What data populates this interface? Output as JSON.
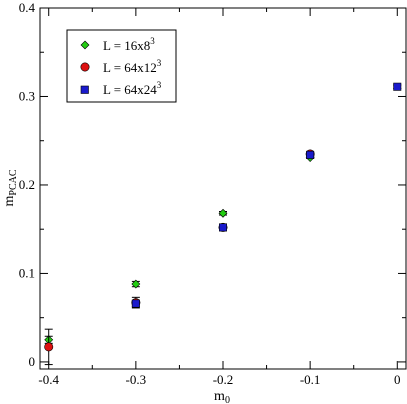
{
  "chart_data": {
    "type": "scatter",
    "xlabel": "m",
    "xlabel_sub": "0",
    "ylabel": "m",
    "ylabel_sub": "PCAC",
    "xlim": [
      -0.41,
      0.01
    ],
    "ylim": [
      -0.008,
      0.4
    ],
    "xticks": [
      -0.4,
      -0.3,
      -0.2,
      -0.1,
      0
    ],
    "xtick_labels": [
      "-0.4",
      "-0.3",
      "-0.2",
      "-0.1",
      "0"
    ],
    "yticks": [
      0,
      0.1,
      0.2,
      0.3,
      0.4
    ],
    "ytick_labels": [
      "0",
      "0.1",
      "0.2",
      "0.3",
      "0.4"
    ],
    "grid": false,
    "legend_position": "top-left",
    "series": [
      {
        "name": "L = 16x8",
        "name_sup": "3",
        "marker": "diamond",
        "color": "#22cc11",
        "points": [
          {
            "x": -0.4,
            "y": 0.025,
            "err": 0.004
          },
          {
            "x": -0.3,
            "y": 0.088,
            "err": 0.003
          },
          {
            "x": -0.2,
            "y": 0.168,
            "err": 0.002
          },
          {
            "x": -0.1,
            "y": 0.231,
            "err": 0.001
          }
        ]
      },
      {
        "name": "L = 64x12",
        "name_sup": "3",
        "marker": "circle",
        "color": "#dd1111",
        "points": [
          {
            "x": -0.4,
            "y": 0.017,
            "err": 0.02
          },
          {
            "x": -0.3,
            "y": 0.067,
            "err": 0.006
          },
          {
            "x": -0.2,
            "y": 0.152,
            "err": 0.002
          },
          {
            "x": -0.1,
            "y": 0.235,
            "err": 0.001
          }
        ]
      },
      {
        "name": "L = 64x24",
        "name_sup": "3",
        "marker": "square",
        "color": "#1a1acc",
        "points": [
          {
            "x": -0.3,
            "y": 0.066,
            "err": 0.003
          },
          {
            "x": -0.2,
            "y": 0.152,
            "err": 0.002
          },
          {
            "x": -0.1,
            "y": 0.234,
            "err": 0.001
          },
          {
            "x": 0.0,
            "y": 0.311,
            "err": 0.002
          }
        ]
      }
    ]
  }
}
